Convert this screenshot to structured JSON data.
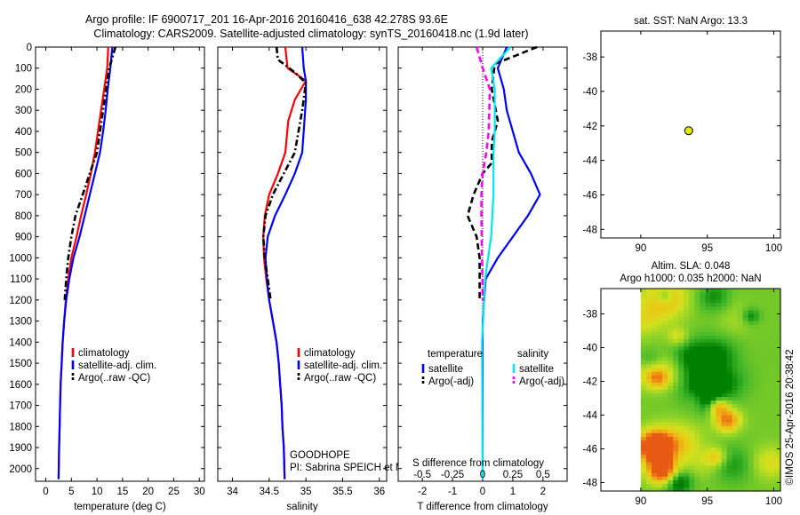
{
  "title_line1": "Argo profile: IF 6900717_201 16-Apr-2016 20160416_638 42.278S 93.6E",
  "title_line2": "Climatology: CARS2009. Satellite-adjusted climatology: synTS_20160418.nc (1.9d later)",
  "watermark": "©IMOS 25-Apr-2016 20:38:42",
  "colors": {
    "climatology": "#ff0000",
    "satellite": "#0000ff",
    "argo": "#000000",
    "sat_diff": "#00e5ee",
    "argo_diff": "#ff00ff"
  },
  "chart_data": [
    {
      "type": "line",
      "xlabel": "temperature (deg C)",
      "xlim": [
        -2,
        31
      ],
      "ylim": [
        2060,
        0
      ],
      "xticks": [
        0,
        5,
        10,
        15,
        20,
        25,
        30
      ],
      "yticks": [
        0,
        100,
        200,
        300,
        400,
        500,
        600,
        700,
        800,
        900,
        1000,
        1100,
        1200,
        1300,
        1400,
        1500,
        1600,
        1700,
        1800,
        1900,
        2000
      ],
      "legend": [
        "climatology",
        "satellite-adj. clim.",
        "Argo(..raw -QC)"
      ],
      "legend_position": "lower-center",
      "series": [
        {
          "name": "climatology",
          "style": "solid",
          "x": [
            12.2,
            12.0,
            11.4,
            10.8,
            10.2,
            9.6,
            8.8,
            7.9,
            6.9,
            6.0,
            5.0,
            4.4,
            3.9,
            3.6,
            3.3,
            3.1,
            2.9,
            2.8,
            2.7,
            2.6,
            2.5
          ],
          "y": [
            0,
            100,
            200,
            300,
            400,
            500,
            600,
            700,
            800,
            900,
            1000,
            1100,
            1200,
            1300,
            1400,
            1500,
            1600,
            1700,
            1800,
            1900,
            2050
          ]
        },
        {
          "name": "satellite-adj. clim.",
          "style": "solid",
          "x": [
            13.0,
            12.6,
            12.1,
            11.7,
            11.2,
            10.6,
            9.6,
            8.6,
            7.6,
            6.6,
            5.4,
            4.6,
            4.0,
            3.6,
            3.3,
            3.1,
            2.9,
            2.8,
            2.7,
            2.6,
            2.5
          ],
          "y": [
            0,
            100,
            200,
            300,
            400,
            500,
            600,
            700,
            800,
            900,
            1000,
            1100,
            1200,
            1300,
            1400,
            1500,
            1600,
            1700,
            1800,
            1900,
            2050
          ]
        },
        {
          "name": "Argo(..raw -QC)",
          "style": "dash-dot",
          "x": [
            13.6,
            12.4,
            11.8,
            11.2,
            10.6,
            10.0,
            8.6,
            7.2,
            5.8,
            5.0,
            4.4,
            4.0,
            3.7
          ],
          "y": [
            0,
            100,
            200,
            300,
            400,
            500,
            600,
            700,
            800,
            900,
            1000,
            1100,
            1200
          ]
        }
      ]
    },
    {
      "type": "line",
      "xlabel": "salinity",
      "xlim": [
        33.8,
        36.1
      ],
      "ylim": [
        2060,
        0
      ],
      "xticks": [
        34,
        34.5,
        35,
        35.5,
        36
      ],
      "xticklabels": [
        "34",
        "34.5",
        "35",
        "35.5",
        "36"
      ],
      "legend": [
        "climatology",
        "satellite-adj. clim.",
        "Argo(..raw -QC)"
      ],
      "legend_position": "lower-right",
      "annotation_line1": "GOODHOPE",
      "annotation_line2": "PI: Sabrina SPEICH et Michel ARHAN",
      "series": [
        {
          "name": "climatology",
          "style": "solid",
          "x": [
            34.72,
            34.75,
            35.0,
            34.85,
            34.76,
            34.72,
            34.62,
            34.5,
            34.44,
            34.42,
            34.43,
            34.46,
            34.5,
            34.55,
            34.6,
            34.63,
            34.65,
            34.67,
            34.68,
            34.7,
            34.71
          ],
          "y": [
            0,
            100,
            160,
            250,
            350,
            500,
            600,
            700,
            800,
            900,
            1000,
            1100,
            1200,
            1300,
            1400,
            1500,
            1600,
            1700,
            1800,
            1900,
            2050
          ]
        },
        {
          "name": "satellite-adj. clim.",
          "style": "solid",
          "x": [
            34.95,
            34.97,
            35.0,
            35.0,
            34.98,
            34.95,
            34.85,
            34.72,
            34.58,
            34.48,
            34.45,
            34.47,
            34.5,
            34.55,
            34.6,
            34.63,
            34.65,
            34.67,
            34.68,
            34.7,
            34.71
          ],
          "y": [
            0,
            100,
            160,
            250,
            350,
            500,
            600,
            700,
            800,
            900,
            1000,
            1100,
            1200,
            1300,
            1400,
            1500,
            1600,
            1700,
            1800,
            1900,
            2050
          ]
        },
        {
          "name": "Argo(..raw -QC)",
          "style": "dash-dot",
          "x": [
            34.6,
            34.62,
            34.85,
            35.0,
            34.95,
            34.85,
            34.7,
            34.55,
            34.45,
            34.42,
            34.44,
            34.48,
            34.52
          ],
          "y": [
            0,
            60,
            120,
            170,
            300,
            500,
            600,
            700,
            800,
            900,
            1000,
            1100,
            1200
          ]
        }
      ]
    },
    {
      "type": "line",
      "xlabel": "T difference from climatology",
      "xlabel2": "S difference from climatology",
      "xlim": [
        -2.8,
        2.8
      ],
      "ylim": [
        2060,
        0
      ],
      "xticks": [
        -2,
        -1,
        0,
        1,
        2
      ],
      "xticks2": [
        -0.5,
        -0.25,
        0,
        0.25,
        0.5
      ],
      "xticklabels2": [
        "-0.5",
        "-0.25",
        "0",
        "0.25",
        "0.5"
      ],
      "legend_header_temperature": "temperature",
      "legend_header_salinity": "salinity",
      "legend": [
        "satellite",
        "Argo(-adj)",
        "satellite",
        "Argo(-adj)"
      ],
      "legend_position": "lower-center",
      "series": [
        {
          "name": "satellite",
          "quantity": "temperature",
          "style": "solid",
          "x": [
            0.8,
            0.5,
            0.7,
            0.8,
            1.0,
            1.2,
            1.6,
            1.9,
            1.5,
            0.5,
            0.1,
            0.05,
            0,
            0,
            0,
            0,
            0,
            0,
            0,
            0,
            0
          ],
          "y": [
            0,
            100,
            200,
            300,
            400,
            500,
            600,
            700,
            800,
            1000,
            1100,
            1200,
            1300,
            1400,
            1500,
            1600,
            1700,
            1800,
            1900,
            2000,
            2050
          ]
        },
        {
          "name": "Argo(-adj)",
          "quantity": "temperature",
          "style": "dashed",
          "x": [
            1.8,
            0.4,
            0.3,
            0.5,
            0.3,
            0.3,
            0.0,
            -0.3,
            -0.5,
            -0.2,
            -0.1,
            -0.1
          ],
          "y": [
            0,
            80,
            200,
            350,
            450,
            550,
            600,
            700,
            800,
            900,
            1000,
            1200
          ]
        },
        {
          "name": "satellite",
          "quantity": "salinity",
          "style": "solid",
          "x": [
            0.23,
            0.07,
            0.1,
            0.1,
            0.1,
            0.09,
            0.09,
            0.09,
            0.07,
            0.02,
            -0.005,
            0
          ],
          "y": [
            0,
            100,
            200,
            300,
            400,
            500,
            600,
            700,
            900,
            1100,
            1400,
            2050
          ]
        },
        {
          "name": "Argo(-adj)",
          "quantity": "salinity",
          "style": "dashed",
          "x": [
            -0.05,
            0.0,
            0.06,
            0.05,
            0.03,
            0.0,
            -0.01,
            -0.01,
            -0.005,
            0
          ],
          "y": [
            0,
            100,
            200,
            400,
            500,
            600,
            700,
            800,
            1000,
            1200
          ]
        }
      ]
    },
    {
      "type": "scatter",
      "title": "sat. SST: NaN Argo: 13.3",
      "xlim": [
        87,
        100.5
      ],
      "ylim": [
        -48.5,
        -36.5
      ],
      "xticks": [
        90,
        95,
        100
      ],
      "yticks": [
        -38,
        -40,
        -42,
        -44,
        -46,
        -48
      ],
      "points": [
        {
          "x": 93.6,
          "y": -42.28
        }
      ]
    },
    {
      "type": "heatmap",
      "title_line1": "Altim. SLA: 0.048",
      "title_line2": "Argo h1000: 0.035 h2000: NaN",
      "xlim": [
        87,
        100.5
      ],
      "ylim": [
        -48.5,
        -36.5
      ],
      "data_xlim": [
        90,
        100.5
      ],
      "xticks": [
        90,
        95,
        100
      ],
      "yticks": [
        -38,
        -40,
        -42,
        -44,
        -46,
        -48
      ]
    }
  ]
}
